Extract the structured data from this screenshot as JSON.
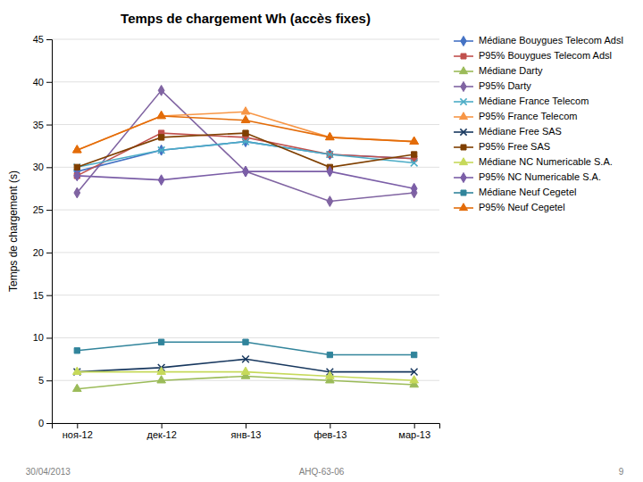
{
  "chart_data": {
    "type": "line",
    "title": "Temps de chargement Wh (accès fixes)",
    "ylabel": "Temps de chargement (s)",
    "categories": [
      "ноя-12",
      "дек-12",
      "янв-13",
      "фев-13",
      "мар-13"
    ],
    "ylim": [
      0,
      45
    ],
    "yticks": [
      0,
      5,
      10,
      15,
      20,
      25,
      30,
      35,
      40,
      45
    ],
    "grid": true,
    "legend": "right",
    "annotations": [
      "30/04/2013",
      "AHQ-63-06",
      "9"
    ],
    "series": [
      {
        "name": "Médiane Bouygues Telecom Adsl",
        "color": "#4472C4",
        "marker": "diamond",
        "values": [
          29.5,
          32.0,
          33.0,
          31.5,
          31.0
        ]
      },
      {
        "name": "P95% Bouygues Telecom Adsl",
        "color": "#C0504D",
        "marker": "square",
        "values": [
          29.0,
          34.0,
          33.5,
          31.5,
          31.0
        ]
      },
      {
        "name": "Médiane Darty",
        "color": "#9BBB59",
        "marker": "triangle",
        "values": [
          4.0,
          5.0,
          5.5,
          5.0,
          4.5
        ]
      },
      {
        "name": "P95% Darty",
        "color": "#8064A2",
        "marker": "diamond",
        "values": [
          27.0,
          39.0,
          29.5,
          26.0,
          27.0
        ]
      },
      {
        "name": "Médiane France Telecom",
        "color": "#4BACC6",
        "marker": "x",
        "values": [
          30.0,
          32.0,
          33.0,
          31.5,
          30.5
        ]
      },
      {
        "name": "P95% France Telecom",
        "color": "#F79646",
        "marker": "triangle",
        "values": [
          32.0,
          36.0,
          36.5,
          33.5,
          33.0
        ]
      },
      {
        "name": "Médiane Free SAS",
        "color": "#17375E",
        "marker": "x",
        "values": [
          6.0,
          6.5,
          7.5,
          6.0,
          6.0
        ]
      },
      {
        "name": "P95% Free SAS",
        "color": "#7F3F00",
        "marker": "square",
        "values": [
          30.0,
          33.5,
          34.0,
          30.0,
          31.5
        ]
      },
      {
        "name": "Médiane NC Numericable S.A.",
        "color": "#C6D95A",
        "marker": "triangle",
        "values": [
          6.0,
          6.0,
          6.0,
          5.5,
          5.0
        ]
      },
      {
        "name": "P95% NC Numericable S.A.",
        "color": "#7B5EA7",
        "marker": "diamond",
        "values": [
          29.0,
          28.5,
          29.5,
          29.5,
          27.5
        ]
      },
      {
        "name": "Médiane Neuf Cegetel",
        "color": "#31849B",
        "marker": "square",
        "values": [
          8.5,
          9.5,
          9.5,
          8.0,
          8.0
        ]
      },
      {
        "name": "P95% Neuf Cegetel",
        "color": "#E36C09",
        "marker": "triangle",
        "values": [
          32.0,
          36.0,
          35.5,
          33.5,
          33.0
        ]
      }
    ]
  }
}
